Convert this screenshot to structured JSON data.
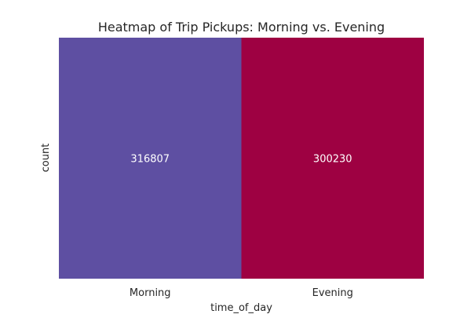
{
  "chart_data": {
    "type": "heatmap",
    "title": "Heatmap of Trip Pickups: Morning vs. Evening",
    "xlabel": "time_of_day",
    "ylabel": "count",
    "x": [
      "Morning",
      "Evening"
    ],
    "y": [
      ""
    ],
    "values": [
      [
        316807,
        300230
      ]
    ],
    "value_labels": [
      "316807",
      "300230"
    ],
    "colormap": "Spectral",
    "colors": [
      "#5e4fa2",
      "#9e0142"
    ],
    "label_color": "#ffffff",
    "grid": false,
    "legend": "none"
  }
}
